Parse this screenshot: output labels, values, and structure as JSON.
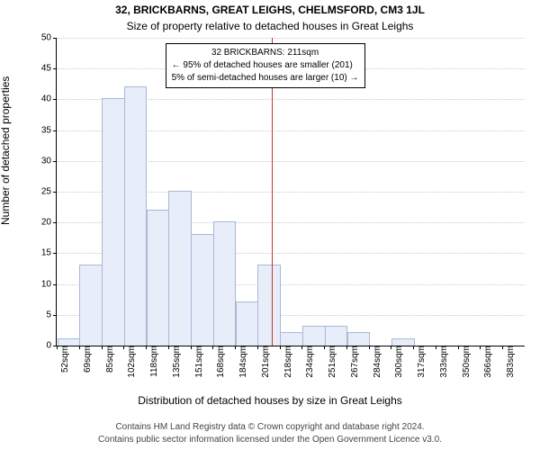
{
  "title_main": "32, BRICKBARNS, GREAT LEIGHS, CHELMSFORD, CM3 1JL",
  "title_sub": "Size of property relative to detached houses in Great Leighs",
  "ylabel": "Number of detached properties",
  "xlabel": "Distribution of detached houses by size in Great Leighs",
  "footer_line1": "Contains HM Land Registry data © Crown copyright and database right 2024.",
  "footer_line2": "Contains public sector information licensed under the Open Government Licence v3.0.",
  "chart": {
    "type": "histogram",
    "ylim": [
      0,
      50
    ],
    "ytick_step": 5,
    "bg": "#ffffff",
    "grid_color": "#cccccc",
    "axis_color": "#000000",
    "bar_fill": "#e8eef9",
    "bar_border": "#a9b8d4",
    "ref_line_color": "#c0392b",
    "bar_width": 0.95,
    "x_start": 52,
    "x_step": 16.5,
    "x_bins": 21,
    "x_labels": [
      "52sqm",
      "69sqm",
      "85sqm",
      "102sqm",
      "118sqm",
      "135sqm",
      "151sqm",
      "168sqm",
      "184sqm",
      "201sqm",
      "218sqm",
      "234sqm",
      "251sqm",
      "267sqm",
      "284sqm",
      "300sqm",
      "317sqm",
      "333sqm",
      "350sqm",
      "366sqm",
      "383sqm"
    ],
    "values": [
      1,
      13,
      40,
      42,
      22,
      25,
      18,
      20,
      7,
      13,
      2,
      3,
      3,
      2,
      0,
      1,
      0,
      0,
      0,
      0,
      0
    ],
    "ref_x": 211,
    "annotation": {
      "line1": "32 BRICKBARNS: 211sqm",
      "line2": "← 95% of detached houses are smaller (201)",
      "line3": "5% of semi-detached houses are larger (10) →",
      "fontsize": 10,
      "border_color": "#000000",
      "bg": "#ffffff"
    }
  },
  "colors": {
    "text": "#000000",
    "footer_text": "#444444"
  },
  "fonts": {
    "title_size": 12,
    "label_size": 12,
    "tick_size": 10,
    "footer_size": 10
  }
}
